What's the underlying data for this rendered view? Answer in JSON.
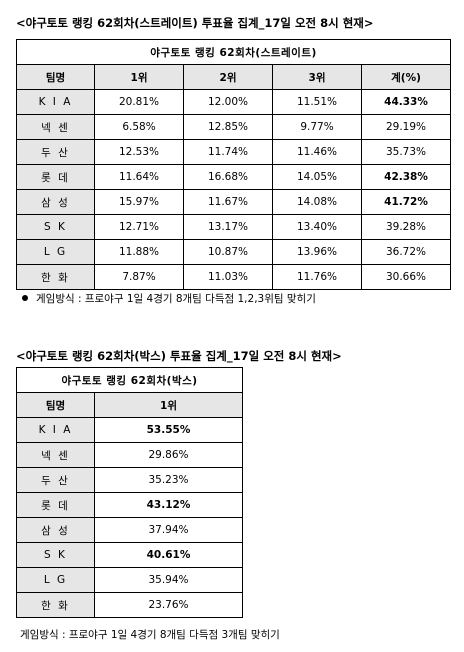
{
  "straight": {
    "heading": "<야구토토 랭킹 62회차(스트레이트) 투표율 집계_17일 오전 8시 현재>",
    "title": "야구토토  랭킹  62회차(스트레이트)",
    "headers": [
      "팀명",
      "1위",
      "2위",
      "3위",
      "계(%)"
    ],
    "rows": [
      {
        "team": "K I A",
        "v1": "20.81%",
        "v2": "12.00%",
        "v3": "11.51%",
        "total": "44.33%",
        "bold": true
      },
      {
        "team": "넥 센",
        "v1": "6.58%",
        "v2": "12.85%",
        "v3": "9.77%",
        "total": "29.19%",
        "bold": false
      },
      {
        "team": "두 산",
        "v1": "12.53%",
        "v2": "11.74%",
        "v3": "11.46%",
        "total": "35.73%",
        "bold": false
      },
      {
        "team": "롯 데",
        "v1": "11.64%",
        "v2": "16.68%",
        "v3": "14.05%",
        "total": "42.38%",
        "bold": true
      },
      {
        "team": "삼 성",
        "v1": "15.97%",
        "v2": "11.67%",
        "v3": "14.08%",
        "total": "41.72%",
        "bold": true
      },
      {
        "team": "S   K",
        "v1": "12.71%",
        "v2": "13.17%",
        "v3": "13.40%",
        "total": "39.28%",
        "bold": false
      },
      {
        "team": "L   G",
        "v1": "11.88%",
        "v2": "10.87%",
        "v3": "13.96%",
        "total": "36.72%",
        "bold": false
      },
      {
        "team": "한 화",
        "v1": "7.87%",
        "v2": "11.03%",
        "v3": "11.76%",
        "total": "30.66%",
        "bold": false
      }
    ],
    "note": "게임방식 : 프로야구 1일 4경기 8개팀 다득점 1,2,3위팀 맞히기"
  },
  "box": {
    "heading": "<야구토토 랭킹 62회차(박스) 투표율 집계_17일 오전 8시 현재>",
    "title": "야구토토  랭킹  62회차(박스)",
    "headers": [
      "팀명",
      "1위"
    ],
    "rows": [
      {
        "team": "K I A",
        "v1": "53.55%",
        "bold": true
      },
      {
        "team": "넥 센",
        "v1": "29.86%",
        "bold": false
      },
      {
        "team": "두 산",
        "v1": "35.23%",
        "bold": false
      },
      {
        "team": "롯 데",
        "v1": "43.12%",
        "bold": true
      },
      {
        "team": "삼 성",
        "v1": "37.94%",
        "bold": false
      },
      {
        "team": "S   K",
        "v1": "40.61%",
        "bold": true
      },
      {
        "team": "L   G",
        "v1": "35.94%",
        "bold": false
      },
      {
        "team": "한 화",
        "v1": "23.76%",
        "bold": false
      }
    ],
    "note": "게임방식 : 프로야구 1일 4경기 8개팀 다득점 3개팀 맞히기"
  }
}
